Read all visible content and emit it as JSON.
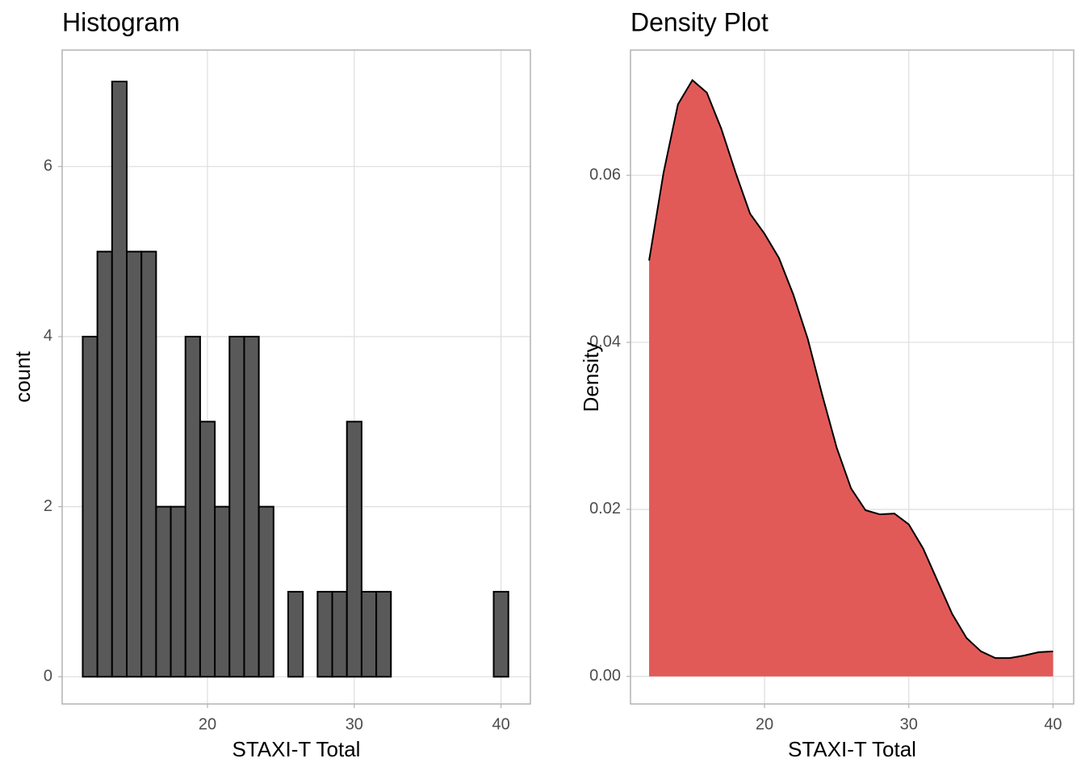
{
  "chart_data": [
    {
      "type": "histogram",
      "title": "Histogram",
      "x_label": "STAXI-T Total",
      "y_label": "count",
      "bins": [
        11.5,
        12.5,
        13.5,
        14.5,
        15.5,
        16.5,
        17.5,
        18.5,
        19.5,
        20.5,
        21.5,
        22.5,
        23.5,
        24.5,
        25.5,
        26.5,
        27.5,
        28.5,
        29.5,
        30.5,
        31.5,
        32.5,
        33.5,
        34.5,
        35.5,
        36.5,
        37.5,
        38.5,
        39.5,
        40.5
      ],
      "values": [
        4,
        5,
        7,
        5,
        5,
        2,
        2,
        4,
        3,
        2,
        4,
        4,
        2,
        0,
        1,
        0,
        1,
        1,
        3,
        1,
        1,
        0,
        0,
        0,
        0,
        0,
        0,
        0,
        1
      ],
      "color": "#595959",
      "xlim": [
        10.1,
        42.0
      ],
      "xticks": [
        20,
        30,
        40
      ],
      "ylim": [
        -0.32,
        7.37
      ],
      "yticks": [
        0,
        2,
        4,
        6
      ],
      "grid": true
    },
    {
      "type": "area",
      "title": "Density Plot",
      "x_label": "STAXI-T Total",
      "y_label": "Density",
      "x": [
        12,
        13,
        14,
        15,
        16,
        17,
        18,
        19,
        20,
        21,
        22,
        23,
        24,
        25,
        26,
        27,
        28,
        29,
        30,
        31,
        32,
        33,
        34,
        35,
        36,
        37,
        38,
        39,
        40
      ],
      "values": [
        0.0498,
        0.0603,
        0.0685,
        0.0714,
        0.0699,
        0.0656,
        0.0603,
        0.0554,
        0.053,
        0.0501,
        0.0457,
        0.0404,
        0.0337,
        0.0274,
        0.0225,
        0.0199,
        0.0194,
        0.0195,
        0.0182,
        0.0153,
        0.0114,
        0.0075,
        0.0046,
        0.003,
        0.0022,
        0.0022,
        0.0025,
        0.0029,
        0.003
      ],
      "color": "#e0514f",
      "xlim": [
        10.71,
        41.43
      ],
      "xticks": [
        20,
        30,
        40
      ],
      "ylim": [
        -0.0033,
        0.075
      ],
      "yticks": [
        {
          "value": 0,
          "label": "0.00"
        },
        0.02,
        0.04,
        0.06
      ],
      "grid": true
    }
  ]
}
